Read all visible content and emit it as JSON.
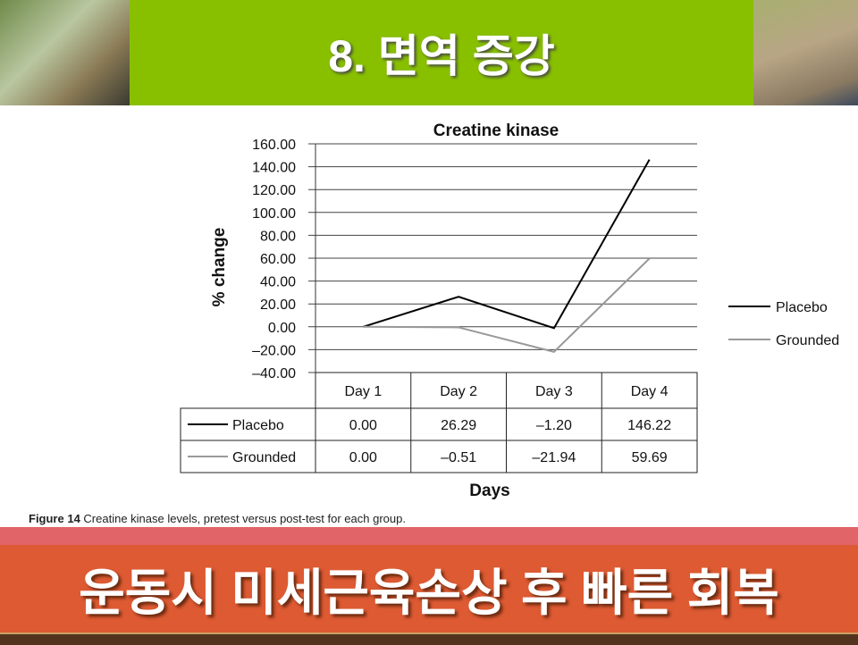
{
  "slide": {
    "title": "8. 면역 증강",
    "bottom_banner": "운동시 미세근육손상 후 빠른 회복",
    "caption_label": "Figure 14",
    "caption_text": " Creatine kinase levels, pretest versus post-test for each group."
  },
  "colors": {
    "green": "#88c000",
    "orange": "#dd5a33",
    "placebo": "#000000",
    "grounded": "#999999"
  },
  "chart_data": {
    "type": "line",
    "title": "Creatine kinase",
    "xlabel": "Days",
    "ylabel": "% change",
    "ylim": [
      -40,
      160
    ],
    "yticks": [
      "160.00",
      "140.00",
      "120.00",
      "100.00",
      "80.00",
      "60.00",
      "40.00",
      "20.00",
      "0.00",
      "–20.00",
      "–40.00"
    ],
    "grid": true,
    "legend": "right",
    "categories": [
      "Day 1",
      "Day 2",
      "Day 3",
      "Day 4"
    ],
    "series": [
      {
        "name": "Placebo",
        "values": [
          0.0,
          26.29,
          -1.2,
          146.22
        ],
        "labels": [
          "0.00",
          "26.29",
          "–1.20",
          "146.22"
        ],
        "color": "#000000"
      },
      {
        "name": "Grounded",
        "values": [
          0.0,
          -0.51,
          -21.94,
          59.69
        ],
        "labels": [
          "0.00",
          "–0.51",
          "–21.94",
          "59.69"
        ],
        "color": "#999999"
      }
    ]
  }
}
